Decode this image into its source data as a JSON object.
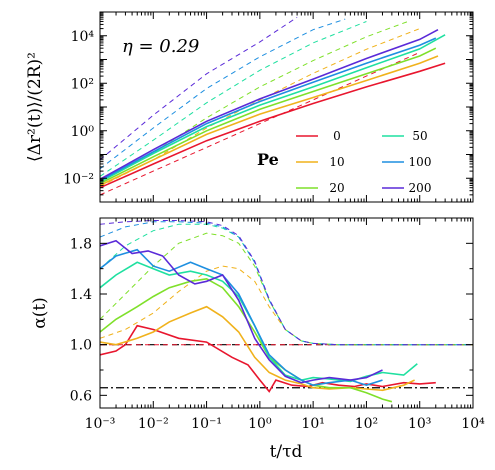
{
  "chart_data": [
    {
      "type": "line",
      "panel": "top",
      "xlabel": "",
      "ylabel": "⟨Δr²(t)⟩/(2R)²",
      "xscale": "log",
      "yscale": "log",
      "xlim": [
        0.001,
        10000
      ],
      "ylim": [
        0.001,
        100000
      ],
      "xticks": [
        0.001,
        0.01,
        0.1,
        1,
        10,
        100,
        1000,
        10000
      ],
      "yticks": [
        0.01,
        1,
        100,
        10000
      ],
      "ytick_labels": [
        "10⁻²",
        "10⁰",
        "10²",
        "10⁴"
      ],
      "annotation": "η = 0.29",
      "legend_title": "Pe",
      "legend_position": "lower-right",
      "series": [
        {
          "name": "0",
          "color": "#e8162e",
          "x": [
            0.001,
            0.01,
            0.1,
            1,
            10,
            100,
            1000,
            3000
          ],
          "y": [
            0.004,
            0.04,
            0.38,
            2.5,
            14,
            70,
            320,
            700
          ]
        },
        {
          "name": "10",
          "color": "#f0b21c",
          "x": [
            0.001,
            0.01,
            0.1,
            1,
            10,
            100,
            1000,
            2200
          ],
          "y": [
            0.005,
            0.06,
            0.7,
            5,
            25,
            130,
            700,
            1400
          ]
        },
        {
          "name": "20",
          "color": "#7fe02a",
          "x": [
            0.001,
            0.01,
            0.1,
            1,
            10,
            100,
            1000,
            2000
          ],
          "y": [
            0.006,
            0.08,
            1.0,
            8,
            45,
            250,
            1400,
            3000
          ]
        },
        {
          "name": "50",
          "color": "#1fe0a0",
          "x": [
            0.001,
            0.01,
            0.1,
            1,
            10,
            100,
            1000,
            3000
          ],
          "y": [
            0.007,
            0.11,
            1.5,
            12,
            70,
            450,
            2800,
            11000
          ]
        },
        {
          "name": "100",
          "color": "#1e8fe0",
          "x": [
            0.001,
            0.01,
            0.1,
            1,
            10,
            100,
            1000,
            2000
          ],
          "y": [
            0.008,
            0.13,
            2.0,
            17,
            110,
            700,
            4000,
            8000
          ]
        },
        {
          "name": "200",
          "color": "#5a2ad8",
          "x": [
            0.001,
            0.01,
            0.1,
            1,
            10,
            100,
            1000,
            2200
          ],
          "y": [
            0.009,
            0.16,
            2.5,
            22,
            150,
            1100,
            7000,
            18000
          ]
        }
      ],
      "dashed_series": [
        {
          "name": "0",
          "color": "#e8162e",
          "x": [
            0.001,
            0.01,
            0.1,
            1,
            10,
            100,
            1000
          ],
          "y": [
            0.002,
            0.02,
            0.2,
            2,
            20,
            200,
            2000
          ]
        },
        {
          "name": "10",
          "color": "#f0b21c",
          "x": [
            0.001,
            0.01,
            0.1,
            1,
            10,
            100,
            1000
          ],
          "y": [
            0.0045,
            0.06,
            1.3,
            20,
            260,
            2700,
            20000
          ]
        },
        {
          "name": "20",
          "color": "#7fe02a",
          "x": [
            0.001,
            0.01,
            0.1,
            1,
            10,
            100,
            600
          ],
          "y": [
            0.007,
            0.12,
            3.5,
            70,
            900,
            9000,
            40000
          ]
        },
        {
          "name": "50",
          "color": "#1fe0a0",
          "x": [
            0.001,
            0.01,
            0.1,
            1,
            10,
            100
          ],
          "y": [
            0.012,
            0.4,
            15,
            350,
            5000,
            40000
          ]
        },
        {
          "name": "100",
          "color": "#1e8fe0",
          "x": [
            0.001,
            0.01,
            0.1,
            1,
            10,
            40
          ],
          "y": [
            0.025,
            1.3,
            60,
            1300,
            18000,
            50000
          ]
        },
        {
          "name": "200",
          "color": "#5a2ad8",
          "x": [
            0.001,
            0.01,
            0.1,
            1,
            5
          ],
          "y": [
            0.06,
            4.5,
            250,
            5500,
            60000
          ]
        }
      ]
    },
    {
      "type": "line",
      "panel": "bottom",
      "xlabel": "t/τd",
      "ylabel": "α(t)",
      "xscale": "log",
      "yscale": "linear",
      "xlim": [
        0.001,
        10000
      ],
      "ylim": [
        0.5,
        2.0
      ],
      "xticks": [
        0.001,
        0.01,
        0.1,
        1,
        10,
        100,
        1000,
        10000
      ],
      "xtick_labels": [
        "10⁻³",
        "10⁻²",
        "10⁻¹",
        "10⁰",
        "10¹",
        "10²",
        "10³",
        "10⁴"
      ],
      "yticks": [
        0.6,
        1.0,
        1.4,
        1.8
      ],
      "ytick_labels": [
        "0.6",
        "1.0",
        "1.4",
        "1.8"
      ],
      "reference_lines": [
        {
          "y": 1.0,
          "style": "dashed",
          "color": "#000000"
        },
        {
          "y": 0.66,
          "style": "dashdot",
          "color": "#000000"
        }
      ],
      "series": [
        {
          "name": "0",
          "color": "#e8162e",
          "x": [
            0.001,
            0.002,
            0.003,
            0.005,
            0.01,
            0.03,
            0.1,
            0.3,
            0.6,
            1.0,
            1.5,
            2,
            4,
            8,
            15,
            30,
            60,
            100,
            200,
            500,
            1000,
            2000
          ],
          "y": [
            0.92,
            0.95,
            1.0,
            1.15,
            1.12,
            1.05,
            1.02,
            0.9,
            0.84,
            0.72,
            0.63,
            0.72,
            0.68,
            0.67,
            0.7,
            0.68,
            0.67,
            0.69,
            0.67,
            0.7,
            0.69,
            0.7
          ]
        },
        {
          "name": "10",
          "color": "#f0b21c",
          "x": [
            0.001,
            0.002,
            0.005,
            0.01,
            0.02,
            0.05,
            0.1,
            0.2,
            0.4,
            0.8,
            1.5,
            3,
            6,
            10,
            20,
            50,
            100,
            200,
            500,
            800
          ],
          "y": [
            1.02,
            1.0,
            1.05,
            1.1,
            1.18,
            1.25,
            1.3,
            1.22,
            1.1,
            0.9,
            0.78,
            0.72,
            0.69,
            0.66,
            0.65,
            0.66,
            0.65,
            0.64,
            0.68,
            0.72
          ]
        },
        {
          "name": "20",
          "color": "#7fe02a",
          "x": [
            0.001,
            0.002,
            0.005,
            0.01,
            0.02,
            0.05,
            0.1,
            0.2,
            0.4,
            0.8,
            1.5,
            3,
            6,
            10,
            20,
            50,
            100,
            200,
            300
          ],
          "y": [
            1.1,
            1.2,
            1.3,
            1.38,
            1.45,
            1.5,
            1.52,
            1.45,
            1.3,
            1.1,
            0.9,
            0.8,
            0.72,
            0.68,
            0.66,
            0.66,
            0.62,
            0.57,
            0.55
          ]
        },
        {
          "name": "50",
          "color": "#1fe0a0",
          "x": [
            0.001,
            0.002,
            0.005,
            0.01,
            0.02,
            0.05,
            0.1,
            0.2,
            0.4,
            0.8,
            1.5,
            3,
            6,
            10,
            20,
            50,
            100,
            200,
            500,
            900
          ],
          "y": [
            1.45,
            1.55,
            1.65,
            1.6,
            1.55,
            1.58,
            1.55,
            1.5,
            1.38,
            1.15,
            0.9,
            0.76,
            0.72,
            0.74,
            0.73,
            0.71,
            0.75,
            0.78,
            0.76,
            0.85
          ]
        },
        {
          "name": "100",
          "color": "#1e8fe0",
          "x": [
            0.001,
            0.002,
            0.005,
            0.01,
            0.02,
            0.05,
            0.1,
            0.2,
            0.4,
            0.8,
            1.5,
            3,
            6,
            10,
            20,
            50,
            100,
            200
          ],
          "y": [
            1.6,
            1.7,
            1.75,
            1.62,
            1.58,
            1.65,
            1.6,
            1.55,
            1.4,
            1.15,
            0.92,
            0.8,
            0.72,
            0.68,
            0.7,
            0.72,
            0.68,
            0.72
          ]
        },
        {
          "name": "200",
          "color": "#5a2ad8",
          "x": [
            0.001,
            0.002,
            0.004,
            0.008,
            0.015,
            0.03,
            0.06,
            0.1,
            0.2,
            0.4,
            0.8,
            1.5,
            3,
            6,
            10,
            20,
            50,
            100,
            200
          ],
          "y": [
            1.78,
            1.82,
            1.72,
            1.74,
            1.7,
            1.55,
            1.48,
            1.5,
            1.55,
            1.35,
            1.05,
            0.88,
            0.75,
            0.7,
            0.72,
            0.74,
            0.72,
            0.74,
            0.8
          ]
        }
      ],
      "dashed_series": [
        {
          "name": "0",
          "color": "#e8162e",
          "x": [
            0.001,
            10000
          ],
          "y": [
            1.0,
            1.0
          ]
        },
        {
          "name": "10",
          "color": "#f0b21c",
          "x": [
            0.001,
            0.003,
            0.01,
            0.03,
            0.1,
            0.2,
            0.4,
            0.8,
            1.5,
            3,
            6,
            10,
            30,
            100,
            1000,
            10000
          ],
          "y": [
            1.05,
            1.12,
            1.25,
            1.42,
            1.58,
            1.62,
            1.6,
            1.5,
            1.3,
            1.12,
            1.03,
            1.01,
            1.0,
            1.0,
            1.0,
            1.0
          ]
        },
        {
          "name": "20",
          "color": "#7fe02a",
          "x": [
            0.001,
            0.003,
            0.01,
            0.03,
            0.1,
            0.2,
            0.4,
            0.8,
            1.5,
            3,
            6,
            10,
            30,
            100,
            1000,
            10000
          ],
          "y": [
            1.2,
            1.4,
            1.62,
            1.8,
            1.88,
            1.86,
            1.8,
            1.62,
            1.35,
            1.12,
            1.03,
            1.01,
            1.0,
            1.0,
            1.0,
            1.0
          ]
        },
        {
          "name": "50",
          "color": "#1fe0a0",
          "x": [
            0.001,
            0.003,
            0.01,
            0.03,
            0.1,
            0.2,
            0.4,
            0.8,
            1.5,
            3,
            6,
            10,
            30,
            100,
            1000,
            10000
          ],
          "y": [
            1.6,
            1.78,
            1.9,
            1.95,
            1.95,
            1.92,
            1.85,
            1.65,
            1.35,
            1.12,
            1.03,
            1.01,
            1.0,
            1.0,
            1.0,
            1.0
          ]
        },
        {
          "name": "100",
          "color": "#1e8fe0",
          "x": [
            0.001,
            0.003,
            0.01,
            0.03,
            0.1,
            0.2,
            0.4,
            0.8,
            1.5,
            3,
            6,
            10,
            30,
            100,
            1000,
            10000
          ],
          "y": [
            1.85,
            1.93,
            1.97,
            1.97,
            1.96,
            1.93,
            1.85,
            1.65,
            1.35,
            1.12,
            1.03,
            1.01,
            1.0,
            1.0,
            1.0,
            1.0
          ]
        },
        {
          "name": "200",
          "color": "#5a2ad8",
          "x": [
            0.001,
            0.003,
            0.01,
            0.03,
            0.1,
            0.2,
            0.4,
            0.8,
            1.5,
            3,
            6,
            10,
            30,
            100,
            1000,
            10000
          ],
          "y": [
            1.95,
            1.97,
            1.98,
            1.98,
            1.97,
            1.94,
            1.86,
            1.66,
            1.36,
            1.12,
            1.03,
            1.01,
            1.0,
            1.0,
            1.0,
            1.0
          ]
        }
      ]
    }
  ]
}
